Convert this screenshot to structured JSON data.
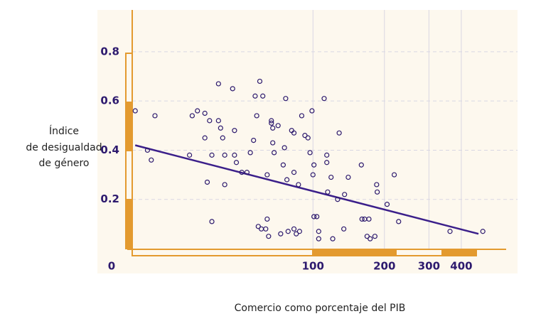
{
  "chart_data": {
    "type": "scatter",
    "x_label": "Comercio como porcentaje del PIB",
    "y_label": [
      "Índice",
      "de desigualdad",
      "de género"
    ],
    "xscale": "log-shifted",
    "xshift": 23,
    "xlim": [
      0,
      560
    ],
    "ylim": [
      0,
      0.97
    ],
    "xticks": [
      0,
      100,
      200,
      300,
      400
    ],
    "yticks": [
      0.2,
      0.4,
      0.6,
      0.8
    ],
    "grid": true,
    "color": "#2d1a6e",
    "x": [
      5,
      8,
      9,
      10,
      21,
      22,
      24,
      27,
      27,
      28,
      29,
      30,
      30,
      33,
      33,
      34,
      35,
      36,
      36,
      40,
      41,
      41,
      42,
      45,
      48,
      50,
      52,
      53,
      54,
      55,
      56,
      57,
      58,
      60,
      61,
      61,
      62,
      64,
      64,
      65,
      65,
      66,
      69,
      71,
      73,
      74,
      75,
      76,
      77,
      80,
      82,
      82,
      82,
      84,
      86,
      87,
      89,
      92,
      95,
      97,
      99,
      100,
      101,
      101,
      104,
      106,
      106,
      112,
      115,
      115,
      116,
      120,
      122,
      128,
      130,
      136,
      137,
      142,
      161,
      162,
      166,
      170,
      173,
      175,
      183,
      186,
      187,
      205,
      219,
      228,
      362,
      483
    ],
    "y": [
      0.56,
      0.4,
      0.36,
      0.54,
      0.38,
      0.54,
      0.56,
      0.55,
      0.45,
      0.27,
      0.52,
      0.11,
      0.38,
      0.67,
      0.52,
      0.49,
      0.45,
      0.38,
      0.26,
      0.65,
      0.38,
      0.48,
      0.35,
      0.31,
      0.31,
      0.39,
      0.44,
      0.62,
      0.54,
      0.09,
      0.68,
      0.08,
      0.62,
      0.08,
      0.3,
      0.12,
      0.05,
      0.52,
      0.51,
      0.43,
      0.49,
      0.39,
      0.5,
      0.06,
      0.34,
      0.41,
      0.61,
      0.28,
      0.07,
      0.48,
      0.47,
      0.31,
      0.08,
      0.06,
      0.26,
      0.07,
      0.54,
      0.46,
      0.45,
      0.39,
      0.56,
      0.3,
      0.13,
      0.34,
      0.13,
      0.04,
      0.07,
      0.61,
      0.38,
      0.35,
      0.23,
      0.29,
      0.04,
      0.2,
      0.47,
      0.08,
      0.22,
      0.29,
      0.34,
      0.12,
      0.12,
      0.05,
      0.12,
      0.04,
      0.05,
      0.26,
      0.23,
      0.18,
      0.3,
      0.11,
      0.07,
      0.07
    ],
    "trendline": {
      "color": "#3b1f8a",
      "x": [
        5,
        465
      ],
      "y": [
        0.42,
        0.06
      ]
    }
  }
}
